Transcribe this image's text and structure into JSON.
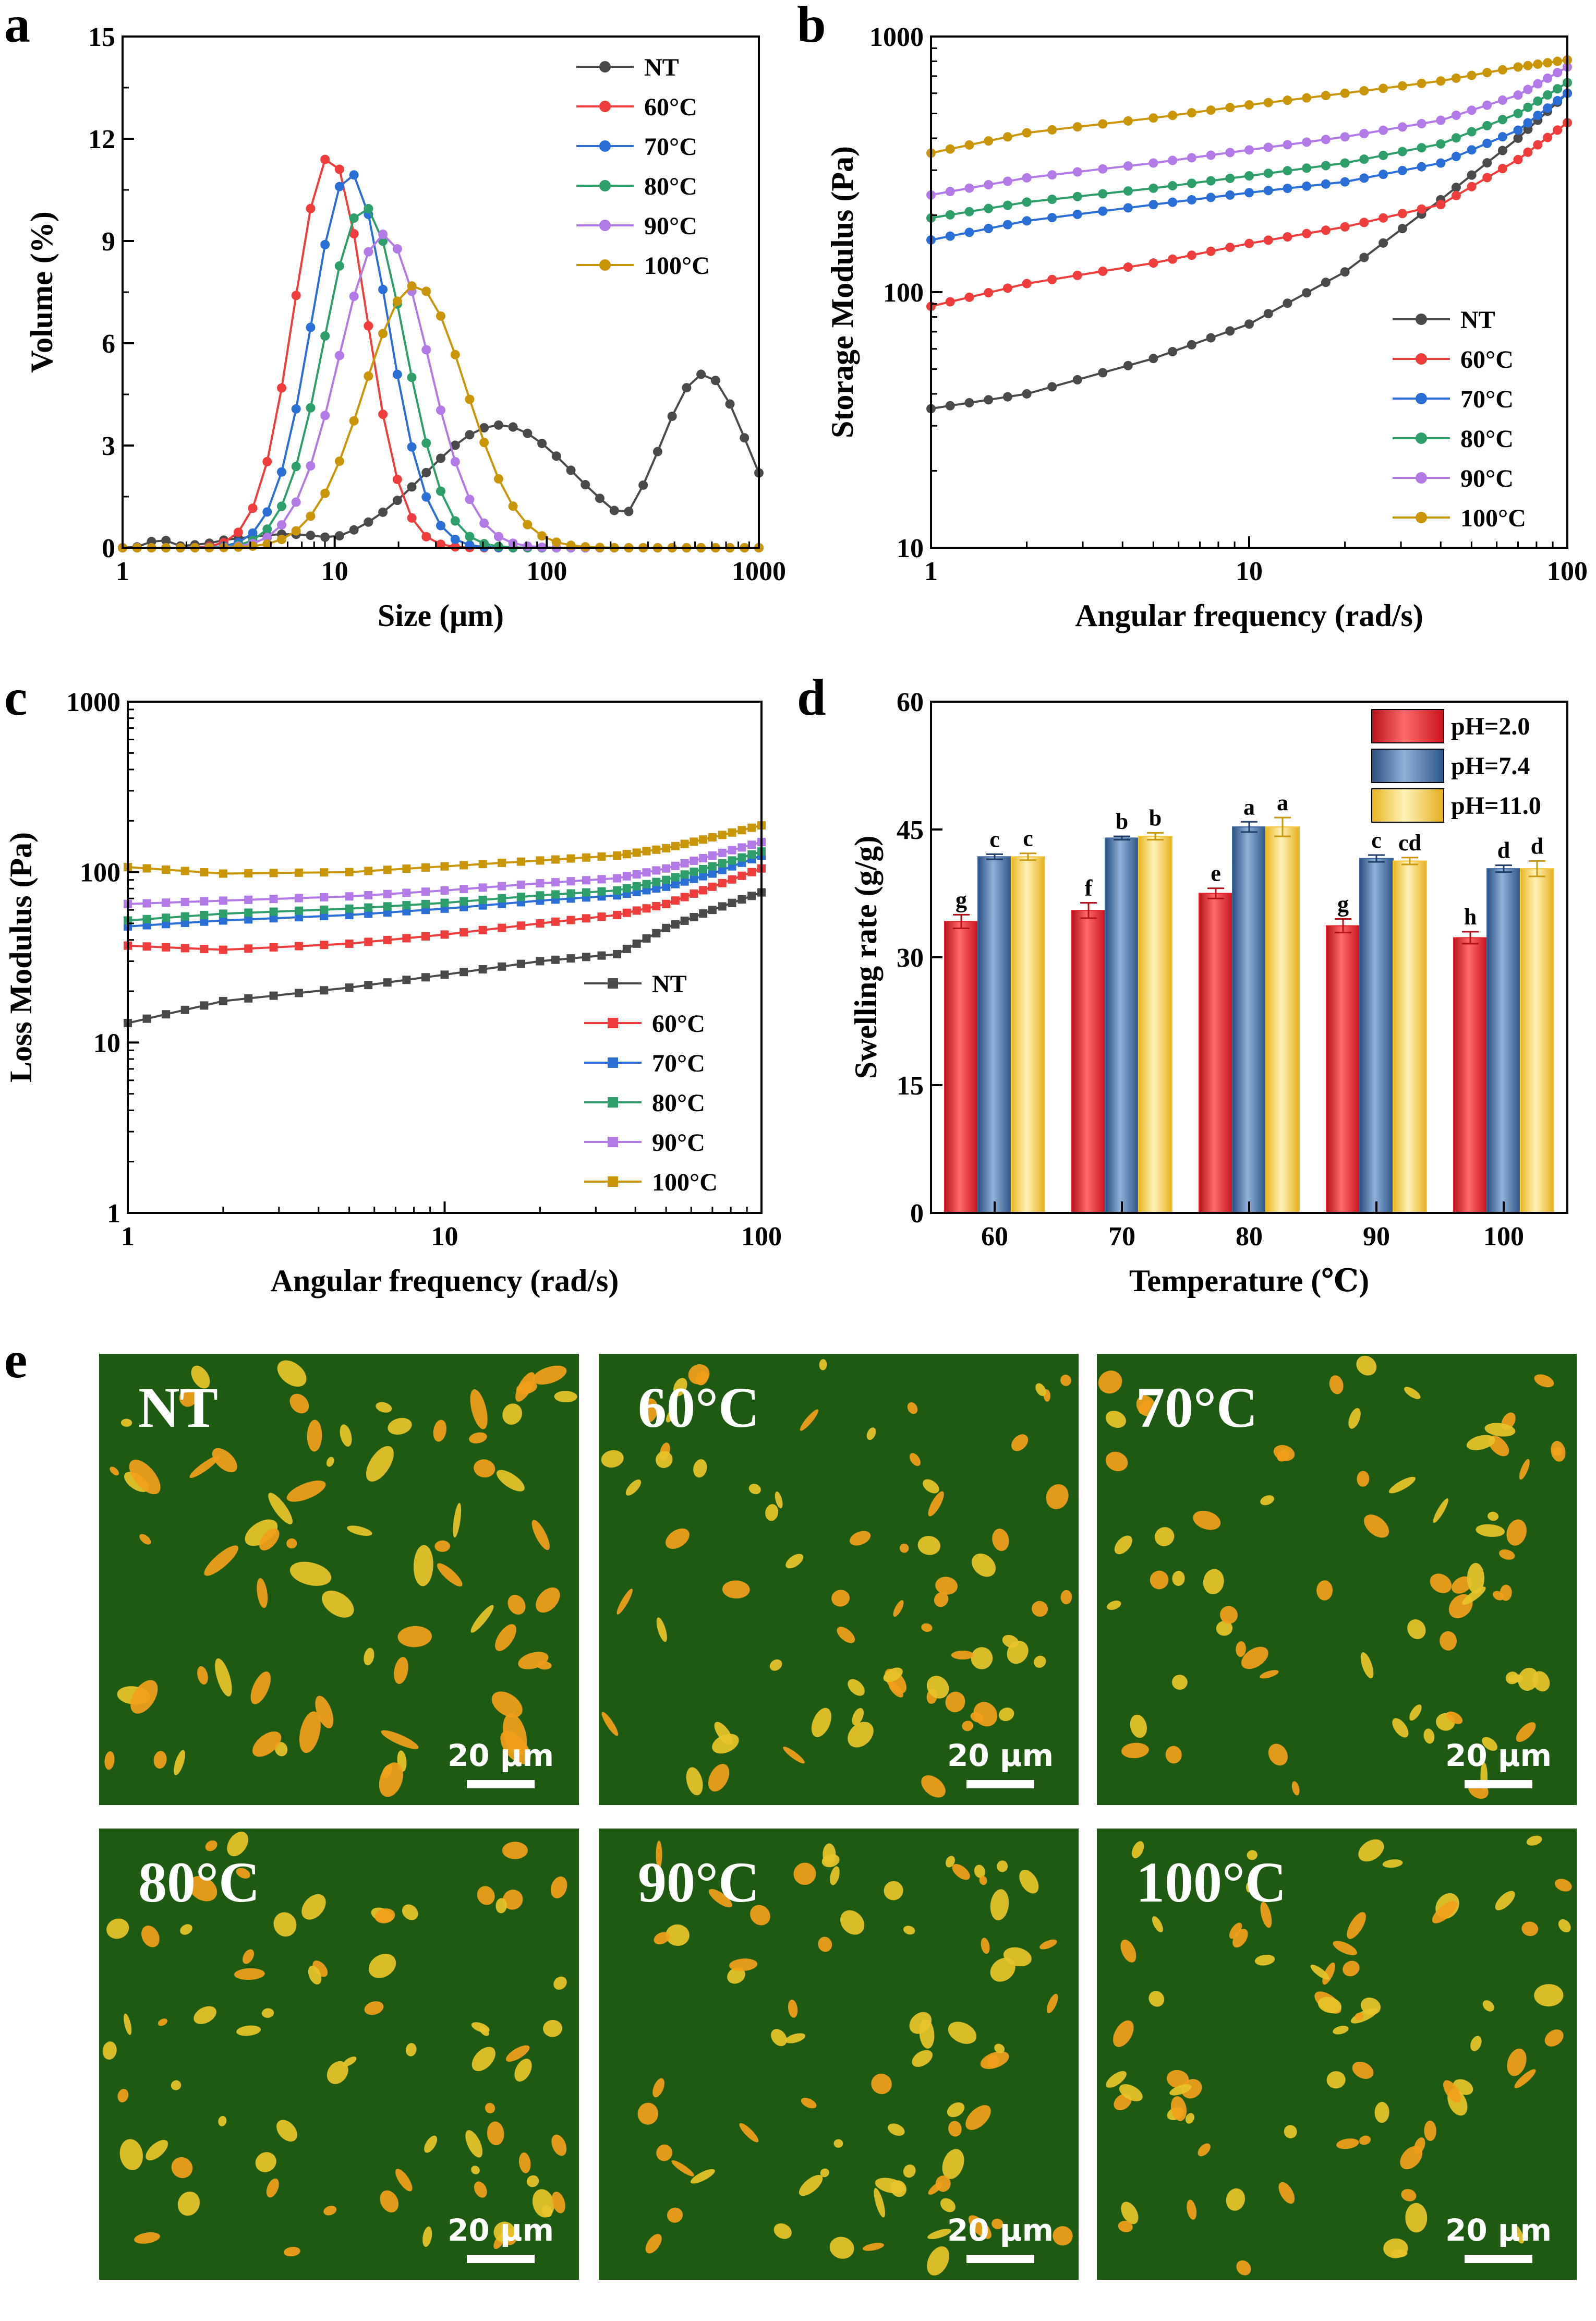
{
  "colors": {
    "NT": "#4a4a4a",
    "60°C": "#ef3d3d",
    "70°C": "#2b6fd6",
    "80°C": "#2e9e6a",
    "90°C": "#b27ae6",
    "100°C": "#c9960a",
    "pH=2.0": "#e8202a",
    "pH=7.4": "#3d67a0",
    "pH=11.0": "#f5c842",
    "micro_bg": "#1f5a12",
    "micro_particle_a": "#f2a01a",
    "micro_particle_b": "#e8c42a"
  },
  "chart_data": [
    {
      "panel": "a",
      "type": "line",
      "xlabel": "Size (μm)",
      "ylabel": "Volume (%)",
      "xscale": "log",
      "xlim": [
        1,
        1000
      ],
      "ylim": [
        0,
        15
      ],
      "yticks": [
        0,
        3,
        6,
        9,
        12,
        15
      ],
      "xticks": [
        1,
        10,
        100,
        1000
      ],
      "xtick_labels": [
        "1",
        "10",
        "100",
        "1000"
      ],
      "ytick_labels": [
        "0",
        "3",
        "6",
        "9",
        "12",
        "15"
      ],
      "legend": "top-right",
      "marker": "circle",
      "series": [
        {
          "name": "NT",
          "distribution": [
            [
              1.5,
              0.05,
              0.25
            ],
            [
              3.5,
              0.1,
              0.28
            ],
            [
              6,
              0.25,
              0.4
            ],
            [
              60,
              0.35,
              3.6
            ],
            [
              550,
              0.2,
              5.1
            ]
          ]
        },
        {
          "name": "60°C",
          "distribution": [
            [
              9.5,
              0.17,
              11.5
            ]
          ]
        },
        {
          "name": "70°C",
          "distribution": [
            [
              11.8,
              0.18,
              11.0
            ]
          ]
        },
        {
          "name": "80°C",
          "distribution": [
            [
              13.8,
              0.19,
              10.0
            ]
          ]
        },
        {
          "name": "90°C",
          "distribution": [
            [
              17,
              0.21,
              9.2
            ]
          ]
        },
        {
          "name": "100°C",
          "distribution": [
            [
              24,
              0.24,
              7.7
            ]
          ]
        }
      ]
    },
    {
      "panel": "b",
      "type": "line",
      "xlabel": "Angular frequency (rad/s)",
      "ylabel": "Storage Modulus (Pa)",
      "xscale": "log",
      "yscale": "log",
      "xlim": [
        1,
        100
      ],
      "ylim": [
        10,
        1000
      ],
      "xticks": [
        1,
        10,
        100
      ],
      "yticks": [
        10,
        100,
        1000
      ],
      "xtick_labels": [
        "1",
        "10",
        "100"
      ],
      "ytick_labels": [
        "10",
        "100",
        "1000"
      ],
      "legend": "bottom-right",
      "marker": "circle",
      "series": [
        {
          "name": "NT",
          "x": [
            1,
            2,
            5,
            10,
            20,
            40,
            70,
            100
          ],
          "values": [
            35,
            40,
            55,
            75,
            120,
            230,
            400,
            600
          ]
        },
        {
          "name": "60°C",
          "x": [
            1,
            2,
            5,
            10,
            20,
            40,
            70,
            100
          ],
          "values": [
            88,
            108,
            130,
            155,
            180,
            220,
            330,
            460
          ]
        },
        {
          "name": "70°C",
          "x": [
            1,
            2,
            5,
            10,
            20,
            40,
            70,
            100
          ],
          "values": [
            160,
            190,
            220,
            245,
            270,
            320,
            430,
            600
          ]
        },
        {
          "name": "80°C",
          "x": [
            1,
            2,
            5,
            10,
            20,
            40,
            70,
            100
          ],
          "values": [
            195,
            225,
            255,
            285,
            320,
            380,
            500,
            660
          ]
        },
        {
          "name": "90°C",
          "x": [
            1,
            2,
            5,
            10,
            20,
            40,
            70,
            100
          ],
          "values": [
            240,
            280,
            320,
            360,
            405,
            470,
            590,
            760
          ]
        },
        {
          "name": "100°C",
          "x": [
            1,
            2,
            5,
            10,
            20,
            40,
            70,
            100
          ],
          "values": [
            350,
            420,
            480,
            540,
            600,
            670,
            760,
            810
          ]
        }
      ]
    },
    {
      "panel": "c",
      "type": "line",
      "xlabel": "Angular frequency (rad/s)",
      "ylabel": "Loss Modulus (Pa)",
      "xscale": "log",
      "yscale": "log",
      "xlim": [
        1,
        100
      ],
      "ylim": [
        1,
        1000
      ],
      "xticks": [
        1,
        10,
        100
      ],
      "yticks": [
        1,
        10,
        100,
        1000
      ],
      "xtick_labels": [
        "1",
        "10",
        "100"
      ],
      "ytick_labels": [
        "1",
        "10",
        "100",
        "1000"
      ],
      "legend": "bottom-right",
      "marker": "square",
      "series": [
        {
          "name": "NT",
          "x": [
            1,
            2,
            5,
            10,
            20,
            35,
            50,
            70,
            100
          ],
          "values": [
            13,
            17.5,
            21,
            25,
            30,
            33,
            47,
            60,
            76
          ]
        },
        {
          "name": "60°C",
          "x": [
            1,
            2,
            5,
            10,
            20,
            35,
            50,
            70,
            100
          ],
          "values": [
            37,
            35,
            38,
            43,
            50,
            56,
            65,
            82,
            105
          ]
        },
        {
          "name": "70°C",
          "x": [
            1,
            2,
            5,
            10,
            20,
            35,
            50,
            70,
            100
          ],
          "values": [
            48,
            52,
            56,
            61,
            68,
            73,
            82,
            98,
            125
          ]
        },
        {
          "name": "80°C",
          "x": [
            1,
            2,
            5,
            10,
            20,
            35,
            50,
            70,
            100
          ],
          "values": [
            52,
            57,
            61,
            66,
            73,
            78,
            90,
            108,
            132
          ]
        },
        {
          "name": "90°C",
          "x": [
            1,
            2,
            5,
            10,
            20,
            35,
            50,
            70,
            100
          ],
          "values": [
            65,
            68,
            72,
            78,
            86,
            92,
            105,
            125,
            150
          ]
        },
        {
          "name": "100°C",
          "x": [
            1,
            2,
            5,
            10,
            20,
            35,
            50,
            70,
            100
          ],
          "values": [
            107,
            98,
            100,
            108,
            117,
            125,
            138,
            160,
            188
          ]
        }
      ]
    },
    {
      "panel": "d",
      "type": "bar",
      "xlabel": "Temperature (℃)",
      "ylabel": "Swelling rate (g/g)",
      "categories": [
        "60",
        "70",
        "80",
        "90",
        "100"
      ],
      "ylim": [
        0,
        60
      ],
      "yticks": [
        0,
        15,
        30,
        45,
        60
      ],
      "ytick_labels": [
        "0",
        "15",
        "30",
        "45",
        "60"
      ],
      "legend": "top-right",
      "series": [
        {
          "name": "pH=2.0",
          "values": [
            34.2,
            35.5,
            37.5,
            33.7,
            32.3
          ],
          "errors": [
            0.8,
            0.9,
            0.6,
            0.8,
            0.7
          ],
          "letters": [
            "g",
            "f",
            "e",
            "g",
            "h"
          ]
        },
        {
          "name": "pH=7.4",
          "values": [
            41.8,
            44.0,
            45.3,
            41.6,
            40.4
          ],
          "errors": [
            0.3,
            0.2,
            0.6,
            0.4,
            0.4
          ],
          "letters": [
            "c",
            "b",
            "a",
            "c",
            "d"
          ]
        },
        {
          "name": "pH=11.0",
          "values": [
            41.8,
            44.2,
            45.3,
            41.3,
            40.4
          ],
          "errors": [
            0.4,
            0.4,
            1.1,
            0.4,
            0.9
          ],
          "letters": [
            "c",
            "b",
            "a",
            "cd",
            "d"
          ]
        }
      ]
    }
  ],
  "panels": {
    "a": "a",
    "b": "b",
    "c": "c",
    "d": "d",
    "e": "e"
  },
  "micrographs": {
    "scale_bar": "20 μm",
    "labels": [
      "NT",
      "60°C",
      "70°C",
      "80°C",
      "90°C",
      "100°C"
    ]
  }
}
